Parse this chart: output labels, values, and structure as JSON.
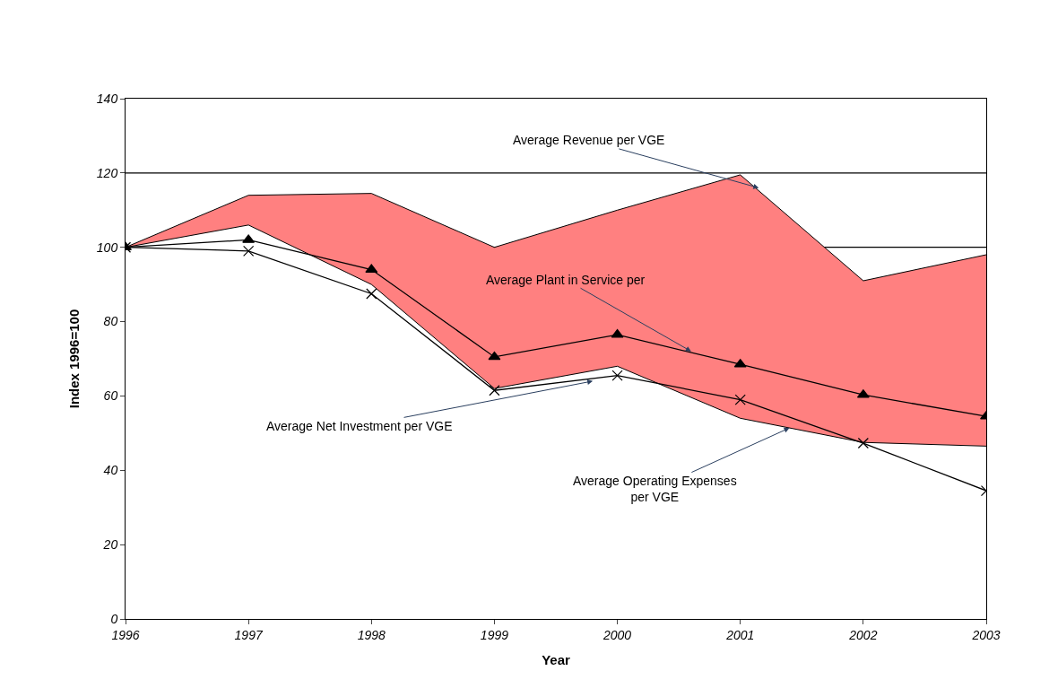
{
  "chart_data": {
    "type": "line",
    "xlabel": "Year",
    "ylabel": "Index 1996=100",
    "x": [
      1996,
      1997,
      1998,
      1999,
      2000,
      2001,
      2002,
      2003
    ],
    "xlim": [
      1996,
      2003
    ],
    "xticks": [
      1996,
      1997,
      1998,
      1999,
      2000,
      2001,
      2002,
      2003
    ],
    "ylim": [
      0,
      140
    ],
    "yticks": [
      0,
      20,
      40,
      60,
      80,
      100,
      120,
      140
    ],
    "grid": false,
    "ref_lines": [
      {
        "axis": "y",
        "value": 100,
        "color": "#000000"
      },
      {
        "axis": "y",
        "value": 120,
        "color": "#000000"
      }
    ],
    "series": [
      {
        "type": "area",
        "color": "#ff8080",
        "marker": "none",
        "values": [
          100,
          114,
          114.5,
          100,
          110,
          119.5,
          91,
          98
        ]
      },
      {
        "type": "area",
        "color": "#ffffff",
        "marker": "none",
        "values": [
          100,
          106,
          90,
          62,
          68,
          54,
          47.5,
          46.5
        ]
      },
      {
        "color": "#000000",
        "marker": "cross",
        "values": [
          100,
          99,
          87.5,
          61.5,
          65.5,
          59,
          47.3,
          34.5
        ]
      },
      {
        "color": "#000000",
        "marker": "triangle",
        "values": [
          100,
          102,
          94,
          70.5,
          76.5,
          68.5,
          60.3,
          54.5
        ]
      }
    ],
    "annotations": [
      {
        "text": "Average Revenue per VGE",
        "x": 2001.15,
        "y": 116
      },
      {
        "text": "Average Plant in Service per",
        "x": 2000.6,
        "y": 72
      },
      {
        "text": "Average Net Investment per VGE",
        "x": 1999.8,
        "y": 64
      },
      {
        "text": "Average Operating Expenses\nper VGE",
        "x": 2001.4,
        "y": 51.4
      }
    ]
  }
}
